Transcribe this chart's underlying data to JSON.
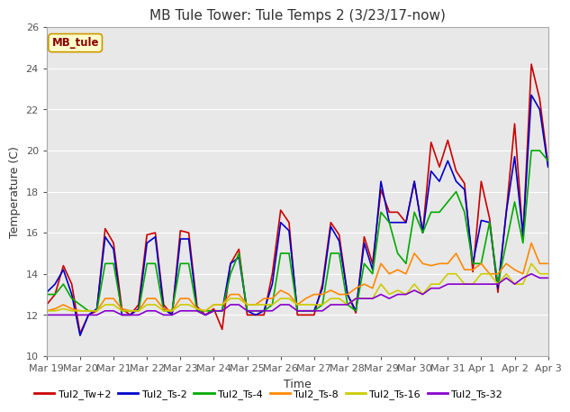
{
  "title": "MB Tule Tower: Tule Temps 2 (3/23/17-now)",
  "xlabel": "Time",
  "ylabel": "Temperature (C)",
  "ylim": [
    10,
    26
  ],
  "yticks": [
    10,
    12,
    14,
    16,
    18,
    20,
    22,
    24,
    26
  ],
  "x_labels": [
    "Mar 19",
    "Mar 20",
    "Mar 21",
    "Mar 22",
    "Mar 23",
    "Mar 24",
    "Mar 25",
    "Mar 26",
    "Mar 27",
    "Mar 28",
    "Mar 29",
    "Mar 30",
    "Mar 31",
    "Apr 1",
    "Apr 2",
    "Apr 3"
  ],
  "background_color": "#ffffff",
  "plot_bg_color": "#e8e8e8",
  "title_fontsize": 11,
  "label_fontsize": 9,
  "tick_fontsize": 8,
  "legend_box_color": "#ffffcc",
  "legend_box_edge": "#cc9900",
  "legend_text": "MB_tule",
  "series": [
    {
      "label": "Tul2_Tw+2",
      "color": "#cc0000",
      "linewidth": 1.2,
      "x": [
        0,
        0.25,
        0.5,
        0.75,
        1.0,
        1.25,
        1.5,
        1.75,
        2.0,
        2.25,
        2.5,
        2.75,
        3.0,
        3.25,
        3.5,
        3.75,
        4.0,
        4.25,
        4.5,
        4.75,
        5.0,
        5.25,
        5.5,
        5.75,
        6.0,
        6.25,
        6.5,
        6.75,
        7.0,
        7.25,
        7.5,
        7.75,
        8.0,
        8.25,
        8.5,
        8.75,
        9.0,
        9.25,
        9.5,
        9.75,
        10.0,
        10.25,
        10.5,
        10.75,
        11.0,
        11.25,
        11.5,
        11.75,
        12.0,
        12.25,
        12.5,
        12.75,
        13.0,
        13.25,
        13.5,
        13.75,
        14.0,
        14.25,
        14.5,
        14.75,
        15.0
      ],
      "y": [
        12.5,
        13.0,
        14.4,
        13.5,
        11.1,
        12.0,
        12.2,
        16.2,
        15.5,
        12.3,
        12.0,
        12.5,
        15.9,
        16.0,
        12.5,
        12.0,
        16.1,
        16.0,
        12.4,
        12.0,
        12.3,
        11.3,
        14.5,
        15.2,
        12.0,
        12.0,
        12.0,
        14.0,
        17.1,
        16.5,
        12.0,
        12.0,
        12.0,
        13.5,
        16.5,
        15.9,
        13.0,
        12.1,
        15.8,
        14.5,
        18.1,
        17.0,
        17.0,
        16.5,
        18.5,
        16.0,
        20.4,
        19.2,
        20.5,
        19.0,
        18.4,
        14.1,
        18.5,
        16.7,
        13.1,
        17.0,
        21.3,
        15.8,
        24.2,
        22.5,
        19.3
      ]
    },
    {
      "label": "Tul2_Ts-2",
      "color": "#0000cc",
      "linewidth": 1.2,
      "x": [
        0,
        0.25,
        0.5,
        0.75,
        1.0,
        1.25,
        1.5,
        1.75,
        2.0,
        2.25,
        2.5,
        2.75,
        3.0,
        3.25,
        3.5,
        3.75,
        4.0,
        4.25,
        4.5,
        4.75,
        5.0,
        5.25,
        5.5,
        5.75,
        6.0,
        6.25,
        6.5,
        6.75,
        7.0,
        7.25,
        7.5,
        7.75,
        8.0,
        8.25,
        8.5,
        8.75,
        9.0,
        9.25,
        9.5,
        9.75,
        10.0,
        10.25,
        10.5,
        10.75,
        11.0,
        11.25,
        11.5,
        11.75,
        12.0,
        12.25,
        12.5,
        12.75,
        13.0,
        13.25,
        13.5,
        13.75,
        14.0,
        14.25,
        14.5,
        14.75,
        15.0
      ],
      "y": [
        13.1,
        13.5,
        14.2,
        13.0,
        11.0,
        12.0,
        12.3,
        15.8,
        15.2,
        12.0,
        12.0,
        12.3,
        15.5,
        15.8,
        12.3,
        12.0,
        15.7,
        15.7,
        12.2,
        12.0,
        12.2,
        12.2,
        14.5,
        14.8,
        12.2,
        12.0,
        12.2,
        13.5,
        16.5,
        16.1,
        12.2,
        12.2,
        12.2,
        13.3,
        16.3,
        15.6,
        13.0,
        12.2,
        15.5,
        14.2,
        18.5,
        16.5,
        16.5,
        16.5,
        18.5,
        16.0,
        19.0,
        18.5,
        19.5,
        18.5,
        18.1,
        14.5,
        16.6,
        16.5,
        13.3,
        17.0,
        19.7,
        15.9,
        22.7,
        22.0,
        19.2
      ]
    },
    {
      "label": "Tul2_Ts-4",
      "color": "#00aa00",
      "linewidth": 1.2,
      "x": [
        0,
        0.25,
        0.5,
        0.75,
        1.0,
        1.25,
        1.5,
        1.75,
        2.0,
        2.25,
        2.5,
        2.75,
        3.0,
        3.25,
        3.5,
        3.75,
        4.0,
        4.25,
        4.5,
        4.75,
        5.0,
        5.25,
        5.5,
        5.75,
        6.0,
        6.25,
        6.5,
        6.75,
        7.0,
        7.25,
        7.5,
        7.75,
        8.0,
        8.25,
        8.5,
        8.75,
        9.0,
        9.25,
        9.5,
        9.75,
        10.0,
        10.25,
        10.5,
        10.75,
        11.0,
        11.25,
        11.5,
        11.75,
        12.0,
        12.25,
        12.5,
        12.75,
        13.0,
        13.25,
        13.5,
        13.75,
        14.0,
        14.25,
        14.5,
        14.75,
        15.0
      ],
      "y": [
        13.0,
        13.0,
        13.5,
        12.8,
        12.5,
        12.2,
        12.2,
        14.5,
        14.5,
        12.2,
        12.2,
        12.2,
        14.5,
        14.5,
        12.2,
        12.2,
        14.5,
        14.5,
        12.2,
        12.2,
        12.2,
        12.2,
        14.0,
        15.0,
        12.2,
        12.2,
        12.2,
        12.5,
        15.0,
        15.0,
        12.2,
        12.2,
        12.2,
        12.5,
        15.0,
        15.0,
        12.5,
        12.2,
        14.5,
        14.0,
        17.0,
        16.5,
        15.0,
        14.5,
        17.0,
        16.0,
        17.0,
        17.0,
        17.5,
        18.0,
        17.0,
        14.5,
        14.5,
        16.5,
        13.5,
        15.5,
        17.5,
        15.5,
        20.0,
        20.0,
        19.5
      ]
    },
    {
      "label": "Tul2_Ts-8",
      "color": "#ff8800",
      "linewidth": 1.2,
      "x": [
        0,
        0.25,
        0.5,
        0.75,
        1.0,
        1.25,
        1.5,
        1.75,
        2.0,
        2.25,
        2.5,
        2.75,
        3.0,
        3.25,
        3.5,
        3.75,
        4.0,
        4.25,
        4.5,
        4.75,
        5.0,
        5.25,
        5.5,
        5.75,
        6.0,
        6.25,
        6.5,
        6.75,
        7.0,
        7.25,
        7.5,
        7.75,
        8.0,
        8.25,
        8.5,
        8.75,
        9.0,
        9.25,
        9.5,
        9.75,
        10.0,
        10.25,
        10.5,
        10.75,
        11.0,
        11.25,
        11.5,
        11.75,
        12.0,
        12.25,
        12.5,
        12.75,
        13.0,
        13.25,
        13.5,
        13.75,
        14.0,
        14.25,
        14.5,
        14.75,
        15.0
      ],
      "y": [
        12.2,
        12.3,
        12.5,
        12.3,
        12.2,
        12.2,
        12.2,
        12.8,
        12.8,
        12.3,
        12.2,
        12.2,
        12.8,
        12.8,
        12.3,
        12.2,
        12.8,
        12.8,
        12.3,
        12.2,
        12.5,
        12.5,
        13.0,
        13.0,
        12.5,
        12.5,
        12.8,
        12.8,
        13.2,
        13.0,
        12.5,
        12.8,
        13.0,
        13.0,
        13.2,
        13.0,
        13.0,
        13.3,
        13.5,
        13.3,
        14.5,
        14.0,
        14.2,
        14.0,
        15.0,
        14.5,
        14.4,
        14.5,
        14.5,
        15.0,
        14.2,
        14.2,
        14.5,
        14.0,
        14.0,
        14.5,
        14.2,
        14.0,
        15.5,
        14.5,
        14.5
      ]
    },
    {
      "label": "Tul2_Ts-16",
      "color": "#cccc00",
      "linewidth": 1.2,
      "x": [
        0,
        0.25,
        0.5,
        0.75,
        1.0,
        1.25,
        1.5,
        1.75,
        2.0,
        2.25,
        2.5,
        2.75,
        3.0,
        3.25,
        3.5,
        3.75,
        4.0,
        4.25,
        4.5,
        4.75,
        5.0,
        5.25,
        5.5,
        5.75,
        6.0,
        6.25,
        6.5,
        6.75,
        7.0,
        7.25,
        7.5,
        7.75,
        8.0,
        8.25,
        8.5,
        8.75,
        9.0,
        9.25,
        9.5,
        9.75,
        10.0,
        10.25,
        10.5,
        10.75,
        11.0,
        11.25,
        11.5,
        11.75,
        12.0,
        12.25,
        12.5,
        12.75,
        13.0,
        13.25,
        13.5,
        13.75,
        14.0,
        14.25,
        14.5,
        14.75,
        15.0
      ],
      "y": [
        12.2,
        12.2,
        12.3,
        12.2,
        12.2,
        12.2,
        12.2,
        12.5,
        12.5,
        12.2,
        12.2,
        12.2,
        12.5,
        12.5,
        12.2,
        12.2,
        12.5,
        12.5,
        12.3,
        12.2,
        12.5,
        12.5,
        12.8,
        12.8,
        12.5,
        12.5,
        12.5,
        12.5,
        12.8,
        12.8,
        12.5,
        12.5,
        12.5,
        12.5,
        12.8,
        12.8,
        12.5,
        12.8,
        12.8,
        12.8,
        13.5,
        13.0,
        13.2,
        13.0,
        13.5,
        13.0,
        13.5,
        13.5,
        14.0,
        14.0,
        13.5,
        13.5,
        14.0,
        14.0,
        13.5,
        14.0,
        13.5,
        13.5,
        14.5,
        14.0,
        14.0
      ]
    },
    {
      "label": "Tul2_Ts-32",
      "color": "#8800cc",
      "linewidth": 1.2,
      "x": [
        0,
        0.25,
        0.5,
        0.75,
        1.0,
        1.25,
        1.5,
        1.75,
        2.0,
        2.25,
        2.5,
        2.75,
        3.0,
        3.25,
        3.5,
        3.75,
        4.0,
        4.25,
        4.5,
        4.75,
        5.0,
        5.25,
        5.5,
        5.75,
        6.0,
        6.25,
        6.5,
        6.75,
        7.0,
        7.25,
        7.5,
        7.75,
        8.0,
        8.25,
        8.5,
        8.75,
        9.0,
        9.25,
        9.5,
        9.75,
        10.0,
        10.25,
        10.5,
        10.75,
        11.0,
        11.25,
        11.5,
        11.75,
        12.0,
        12.25,
        12.5,
        12.75,
        13.0,
        13.25,
        13.5,
        13.75,
        14.0,
        14.25,
        14.5,
        14.75,
        15.0
      ],
      "y": [
        12.0,
        12.0,
        12.0,
        12.0,
        12.0,
        12.0,
        12.0,
        12.2,
        12.2,
        12.0,
        12.0,
        12.0,
        12.2,
        12.2,
        12.0,
        12.0,
        12.2,
        12.2,
        12.2,
        12.0,
        12.2,
        12.2,
        12.5,
        12.5,
        12.2,
        12.2,
        12.2,
        12.2,
        12.5,
        12.5,
        12.2,
        12.2,
        12.2,
        12.2,
        12.5,
        12.5,
        12.5,
        12.8,
        12.8,
        12.8,
        13.0,
        12.8,
        13.0,
        13.0,
        13.2,
        13.0,
        13.3,
        13.3,
        13.5,
        13.5,
        13.5,
        13.5,
        13.5,
        13.5,
        13.5,
        13.8,
        13.5,
        13.8,
        14.0,
        13.8,
        13.8
      ]
    }
  ],
  "x_tick_positions": [
    0,
    1,
    2,
    3,
    4,
    5,
    6,
    7,
    8,
    9,
    10,
    11,
    12,
    13,
    14,
    15
  ],
  "xlim": [
    0,
    15
  ]
}
